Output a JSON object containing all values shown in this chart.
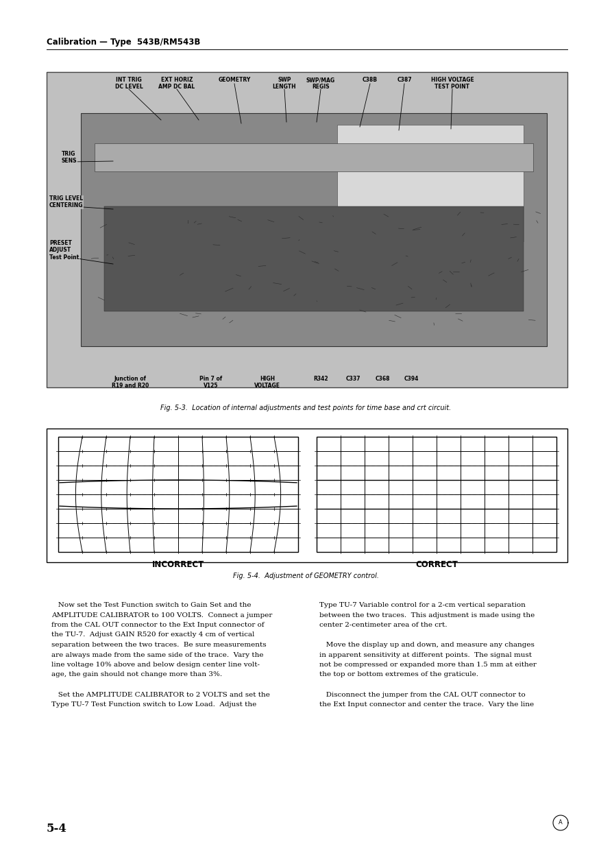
{
  "page_bg": "#ffffff",
  "header_text": "Calibration — Type  543B/RM543B",
  "header_fontsize": 8.5,
  "fig1_caption": "Fig. 5-3.  Location of internal adjustments and test points for time base and crt circuit.",
  "fig1_caption_fontsize": 7.0,
  "fig2_caption": "Fig. 5-4.  Adjustment of GEOMETRY control.",
  "fig2_caption_fontsize": 7.0,
  "incorrect_label": "INCORRECT",
  "correct_label": "CORRECT",
  "body_text_left": [
    "   Now set the Test Function switch to Gain Set and the",
    "AMPLITUDE CALIBRATOR to 100 VOLTS.  Connect a jumper",
    "from the CAL OUT connector to the Ext Input connector of",
    "the TU-7.  Adjust GAIN R520 for exactly 4 cm of vertical",
    "separation between the two traces.  Be sure measurements",
    "are always made from the same side of the trace.  Vary the",
    "line voltage 10% above and below design center line volt-",
    "age, the gain should not change more than 3%.",
    "",
    "   Set the AMPLITUDE CALIBRATOR to 2 VOLTS and set the",
    "Type TU-7 Test Function switch to Low Load.  Adjust the"
  ],
  "body_text_right": [
    "Type TU-7 Variable control for a 2-cm vertical separation",
    "between the two traces.  This adjustment is made using the",
    "center 2-centimeter area of the crt.",
    "",
    "   Move the display up and down, and measure any changes",
    "in apparent sensitivity at different points.  The signal must",
    "not be compressed or expanded more than 1.5 mm at either",
    "the top or bottom extremes of the graticule.",
    "",
    "   Disconnect the jumper from the CAL OUT connector to",
    "the Ext Input connector and center the trace.  Vary the line"
  ],
  "page_number": "5-4",
  "page_num_fontsize": 12
}
